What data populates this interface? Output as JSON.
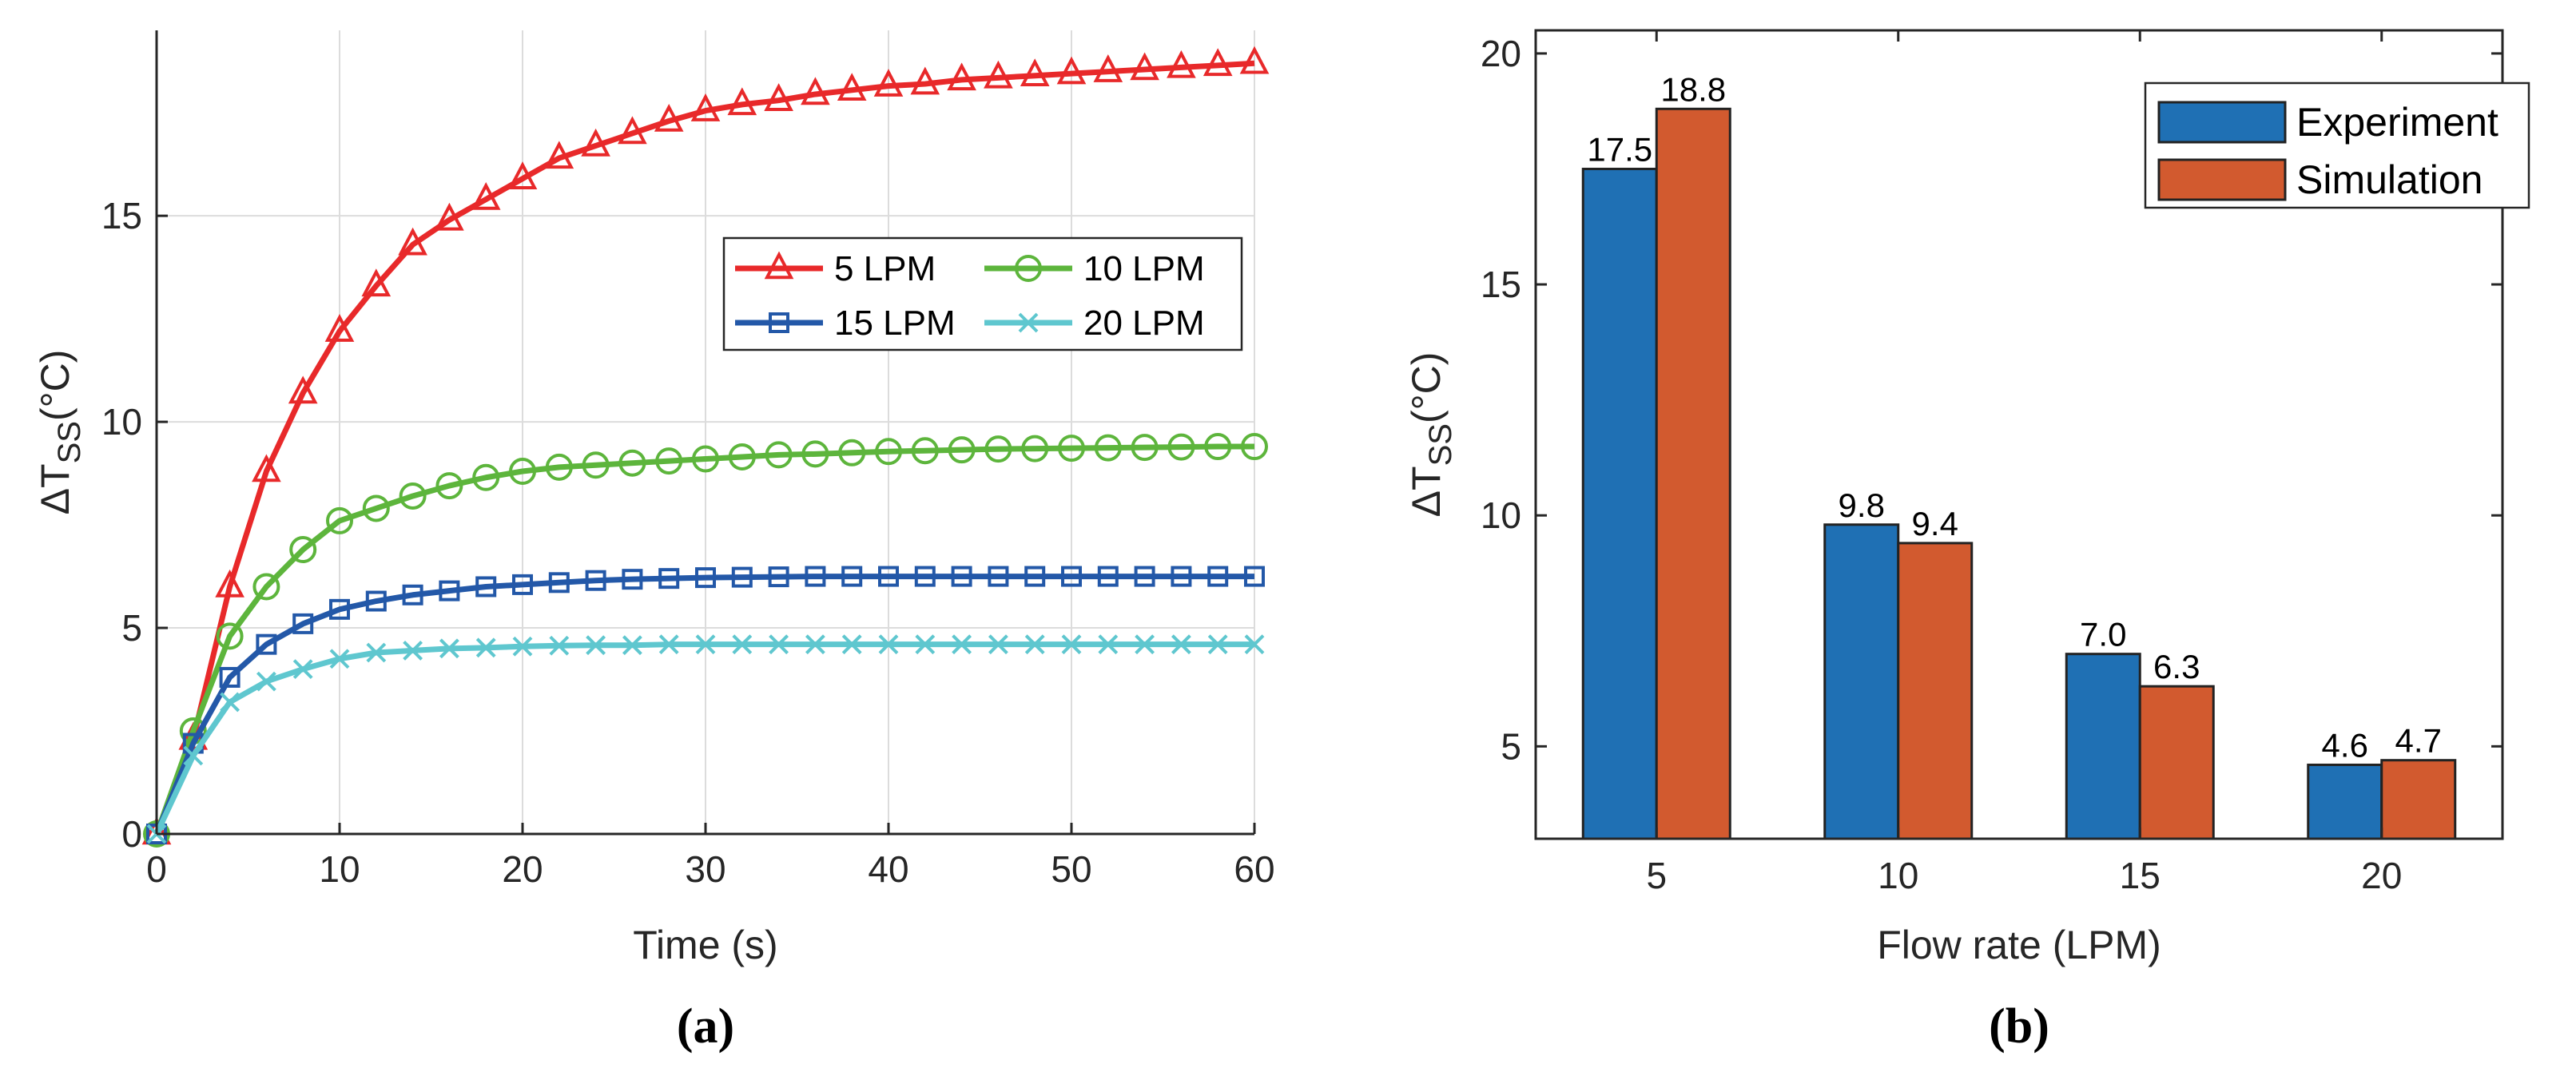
{
  "chart_data": [
    {
      "type": "line",
      "panel_label": "(a)",
      "xlabel": "Time (s)",
      "ylabel": "ΔT",
      "ylabel_sub": "SS",
      "ylabel_unit": "(°C)",
      "xlim": [
        0,
        60
      ],
      "ylim": [
        0,
        19.5
      ],
      "xticks": [
        0,
        10,
        20,
        30,
        40,
        50,
        60
      ],
      "yticks": [
        0,
        5,
        10,
        15
      ],
      "grid": true,
      "legend_position": "upper-right",
      "x": [
        0,
        2,
        4,
        6,
        8,
        10,
        12,
        14,
        16,
        18,
        20,
        22,
        24,
        26,
        28,
        30,
        32,
        34,
        36,
        38,
        40,
        42,
        44,
        46,
        48,
        50,
        52,
        54,
        56,
        58,
        60
      ],
      "series": [
        {
          "name": "5 LPM",
          "color": "#e8292a",
          "marker": "triangle",
          "values": [
            0,
            2.3,
            6.0,
            8.8,
            10.7,
            12.2,
            13.3,
            14.3,
            14.9,
            15.4,
            15.9,
            16.4,
            16.7,
            17.0,
            17.3,
            17.55,
            17.7,
            17.8,
            17.95,
            18.05,
            18.15,
            18.2,
            18.3,
            18.35,
            18.4,
            18.45,
            18.5,
            18.55,
            18.6,
            18.65,
            18.7
          ]
        },
        {
          "name": "10 LPM",
          "color": "#5db53c",
          "marker": "circle",
          "values": [
            0,
            2.5,
            4.8,
            6.0,
            6.9,
            7.6,
            7.9,
            8.2,
            8.45,
            8.65,
            8.8,
            8.9,
            8.95,
            9.0,
            9.05,
            9.1,
            9.15,
            9.2,
            9.22,
            9.25,
            9.28,
            9.3,
            9.32,
            9.34,
            9.35,
            9.36,
            9.37,
            9.38,
            9.39,
            9.4,
            9.4
          ]
        },
        {
          "name": "15 LPM",
          "color": "#2358a8",
          "marker": "square",
          "values": [
            0,
            2.2,
            3.8,
            4.6,
            5.1,
            5.45,
            5.65,
            5.8,
            5.9,
            6.0,
            6.05,
            6.1,
            6.15,
            6.18,
            6.2,
            6.22,
            6.23,
            6.24,
            6.25,
            6.25,
            6.25,
            6.25,
            6.25,
            6.25,
            6.25,
            6.25,
            6.25,
            6.25,
            6.25,
            6.25,
            6.25
          ]
        },
        {
          "name": "20 LPM",
          "color": "#5fc7cf",
          "marker": "x",
          "values": [
            0,
            1.9,
            3.2,
            3.7,
            4.0,
            4.25,
            4.4,
            4.45,
            4.5,
            4.52,
            4.55,
            4.57,
            4.58,
            4.58,
            4.6,
            4.6,
            4.6,
            4.6,
            4.6,
            4.6,
            4.6,
            4.6,
            4.6,
            4.6,
            4.6,
            4.6,
            4.6,
            4.6,
            4.6,
            4.6,
            4.6
          ]
        }
      ]
    },
    {
      "type": "bar",
      "panel_label": "(b)",
      "xlabel": "Flow rate (LPM)",
      "ylabel": "ΔT",
      "ylabel_sub": "SS",
      "ylabel_unit": "(°C)",
      "categories": [
        "5",
        "10",
        "15",
        "20"
      ],
      "ylim": [
        3,
        20.5
      ],
      "yticks": [
        5,
        10,
        15,
        20
      ],
      "grid": false,
      "legend_position": "top-right",
      "series": [
        {
          "name": "Experiment",
          "color": "#1f70b4",
          "values": [
            17.5,
            9.8,
            7.0,
            4.6
          ],
          "labels": [
            "17.5",
            "9.8",
            "7.0",
            "4.6"
          ]
        },
        {
          "name": "Simulation",
          "color": "#d25a2f",
          "values": [
            18.8,
            9.4,
            6.3,
            4.7
          ],
          "labels": [
            "18.8",
            "9.4",
            "6.3",
            "4.7"
          ]
        }
      ]
    }
  ]
}
